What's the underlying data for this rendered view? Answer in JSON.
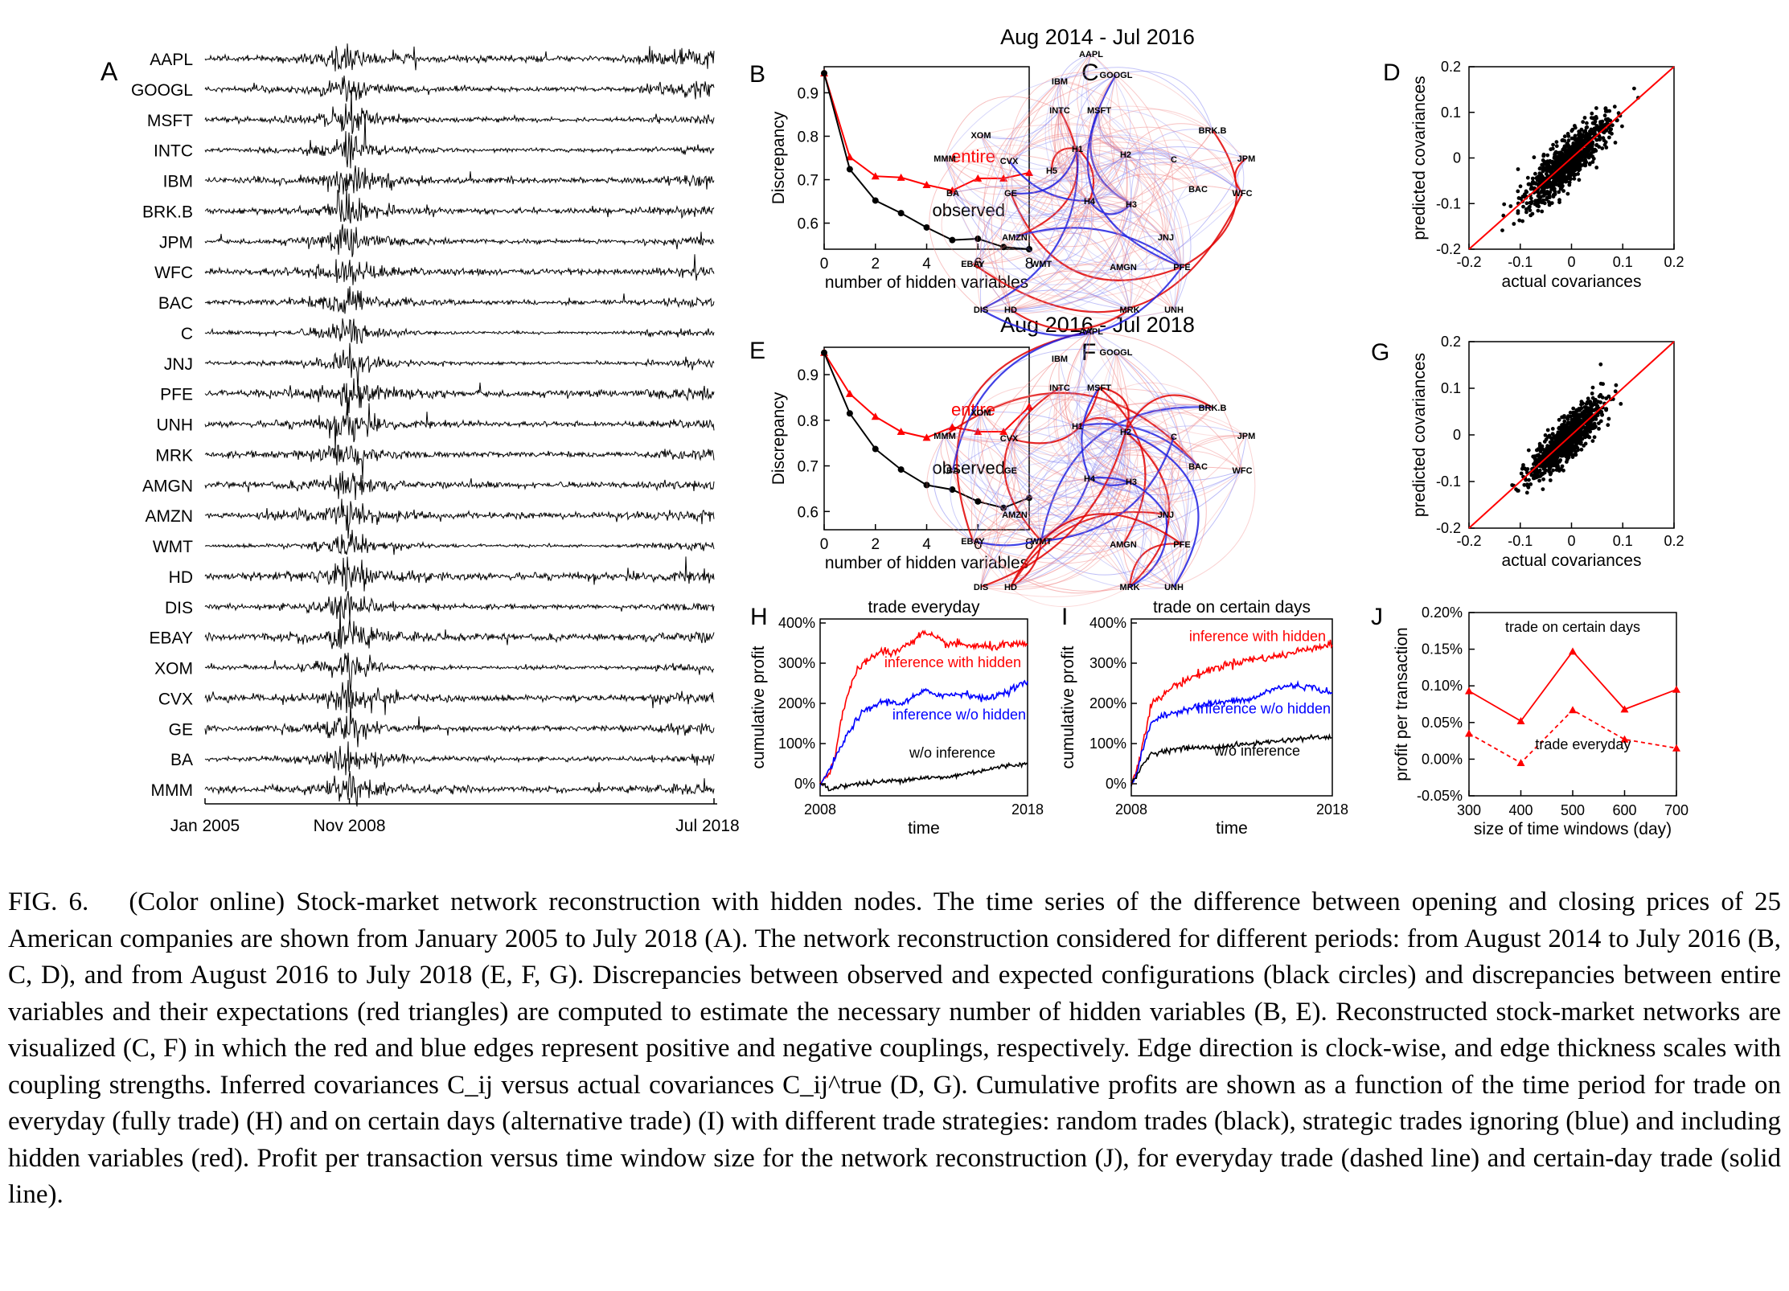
{
  "panelA": {
    "label": "A",
    "stocks": [
      "AAPL",
      "GOOGL",
      "MSFT",
      "INTC",
      "IBM",
      "BRK.B",
      "JPM",
      "WFC",
      "BAC",
      "C",
      "JNJ",
      "PFE",
      "UNH",
      "MRK",
      "AMGN",
      "AMZN",
      "WMT",
      "HD",
      "DIS",
      "EBAY",
      "XOM",
      "CVX",
      "GE",
      "BA",
      "MMM"
    ],
    "xticks": [
      "Jan 2005",
      "Nov 2008",
      "Jul 2018"
    ]
  },
  "period1": "Aug 2014 - Jul 2016",
  "period2": "Aug 2016 - Jul 2018",
  "discrepancy_panels": [
    {
      "label": "B",
      "ylabel": "Discrepancy",
      "xlabel": "number of hidden variables",
      "entire_label": "entire",
      "observed_label": "observed",
      "yticks": [
        "0.6",
        "0.7",
        "0.8",
        "0.9"
      ],
      "xticks": [
        "0",
        "2",
        "4",
        "6",
        "8"
      ],
      "chart_data": {
        "type": "line",
        "xlim": [
          0,
          8
        ],
        "ylim": [
          0.54,
          0.96
        ],
        "series": [
          {
            "name": "entire",
            "color": "#ff0000",
            "x": [
              0,
              1,
              2,
              3,
              4,
              5,
              6,
              7,
              8
            ],
            "y": [
              0.945,
              0.752,
              0.708,
              0.705,
              0.688,
              0.675,
              0.703,
              0.703,
              0.716
            ]
          },
          {
            "name": "observed",
            "color": "#000000",
            "x": [
              0,
              1,
              2,
              3,
              4,
              5,
              6,
              7,
              8
            ],
            "y": [
              0.945,
              0.724,
              0.652,
              0.623,
              0.59,
              0.561,
              0.564,
              0.545,
              0.54
            ]
          }
        ]
      }
    },
    {
      "label": "E",
      "ylabel": "Discrepancy",
      "xlabel": "number of hidden variables",
      "entire_label": "entire",
      "observed_label": "observed",
      "yticks": [
        "0.6",
        "0.7",
        "0.8",
        "0.9"
      ],
      "xticks": [
        "0",
        "2",
        "4",
        "6",
        "8"
      ],
      "chart_data": {
        "type": "line",
        "xlim": [
          0,
          8
        ],
        "ylim": [
          0.56,
          0.96
        ],
        "series": [
          {
            "name": "entire",
            "color": "#ff0000",
            "x": [
              0,
              1,
              2,
              3,
              4,
              5,
              6,
              7,
              8
            ],
            "y": [
              0.948,
              0.858,
              0.808,
              0.775,
              0.762,
              0.785,
              0.775,
              0.775,
              0.83
            ]
          },
          {
            "name": "observed",
            "color": "#000000",
            "x": [
              0,
              1,
              2,
              3,
              4,
              5,
              6,
              7,
              8
            ],
            "y": [
              0.948,
              0.815,
              0.737,
              0.692,
              0.658,
              0.648,
              0.622,
              0.608,
              0.63
            ]
          }
        ]
      }
    }
  ],
  "network_panels": [
    {
      "label": "C",
      "nodes": [
        "AAPL",
        "GOOGL",
        "IBM",
        "INTC",
        "MSFT",
        "XOM",
        "MMM",
        "CVX",
        "BA",
        "GE",
        "H1",
        "H2",
        "H3",
        "H4",
        "H5",
        "BRK.B",
        "C",
        "JPM",
        "BAC",
        "WFC",
        "AMZN",
        "EBAY",
        "WMT",
        "DIS",
        "HD",
        "AMGN",
        "JNJ",
        "PFE",
        "MRK",
        "UNH"
      ]
    },
    {
      "label": "F",
      "nodes": [
        "AAPL",
        "GOOGL",
        "IBM",
        "INTC",
        "MSFT",
        "XOM",
        "MMM",
        "CVX",
        "BA",
        "GE",
        "H1",
        "H2",
        "H3",
        "H4",
        "BRK.B",
        "C",
        "JPM",
        "BAC",
        "WFC",
        "AMZN",
        "EBAY",
        "WMT",
        "DIS",
        "HD",
        "AMGN",
        "JNJ",
        "PFE",
        "MRK",
        "UNH"
      ]
    }
  ],
  "scatter_panels": [
    {
      "label": "D",
      "ylabel": "predicted covariances",
      "xlabel": "actual covariances",
      "xticks": [
        "-0.2",
        "-0.1",
        "0",
        "0.1",
        "0.2"
      ],
      "yticks": [
        "0.2",
        "0.1",
        "0",
        "-0.1",
        "-0.2"
      ],
      "chart_data": {
        "type": "scatter",
        "xlim": [
          -0.2,
          0.2
        ],
        "ylim": [
          -0.2,
          0.2
        ],
        "diagonal_color": "#ff0000",
        "cloud_sd_x": 0.04,
        "cloud_noise": 0.025
      }
    },
    {
      "label": "G",
      "ylabel": "predicted covariances",
      "xlabel": "actual covariances",
      "xticks": [
        "-0.2",
        "-0.1",
        "0",
        "0.1",
        "0.2"
      ],
      "yticks": [
        "0.2",
        "0.1",
        "0",
        "-0.1",
        "-0.2"
      ],
      "chart_data": {
        "type": "scatter",
        "xlim": [
          -0.2,
          0.2
        ],
        "ylim": [
          -0.2,
          0.2
        ],
        "diagonal_color": "#ff0000",
        "cloud_sd_x": 0.035,
        "cloud_noise": 0.022
      }
    }
  ],
  "profit_panels": [
    {
      "label": "H",
      "title": "trade everyday",
      "ylabel": "cumulative profit",
      "xlabel": "time",
      "xticks": [
        "2008",
        "2018"
      ],
      "yticks": [
        "0%",
        "100%",
        "200%",
        "300%",
        "400%"
      ],
      "series_labels": [
        "inference with hidden",
        "inference w/o hidden",
        "w/o inference"
      ],
      "chart_data": {
        "type": "line",
        "xlim": [
          2008,
          2018
        ],
        "ylim": [
          -30,
          410
        ],
        "series": [
          {
            "name": "inference with hidden",
            "color": "#ff0000",
            "x": [
              2008,
              2008.3,
              2008.7,
              2009,
              2009.4,
              2009.8,
              2010.3,
              2011,
              2011.5,
              2012,
              2013,
              2014,
              2015,
              2016,
              2017,
              2018
            ],
            "y": [
              0,
              15,
              60,
              160,
              235,
              280,
              310,
              330,
              325,
              340,
              375,
              350,
              345,
              340,
              345,
              345
            ]
          },
          {
            "name": "inference w/o hidden",
            "color": "#0000ff",
            "x": [
              2008,
              2008.3,
              2008.7,
              2009,
              2009.5,
              2010,
              2011,
              2012,
              2013,
              2014,
              2015,
              2016,
              2017,
              2018
            ],
            "y": [
              0,
              20,
              60,
              90,
              140,
              175,
              205,
              200,
              230,
              220,
              225,
              210,
              230,
              255
            ]
          },
          {
            "name": "w/o inference",
            "color": "#000000",
            "x": [
              2008,
              2008.5,
              2009,
              2010,
              2011,
              2012,
              2013,
              2014,
              2015,
              2016,
              2017,
              2018
            ],
            "y": [
              0,
              -15,
              -5,
              0,
              5,
              10,
              15,
              15,
              25,
              35,
              45,
              50
            ]
          }
        ]
      }
    },
    {
      "label": "I",
      "title": "trade on certain days",
      "ylabel": "cumulative profit",
      "xlabel": "time",
      "xticks": [
        "2008",
        "2018"
      ],
      "yticks": [
        "0%",
        "100%",
        "200%",
        "300%",
        "400%"
      ],
      "series_labels": [
        "inference with hidden",
        "inference w/o hidden",
        "w/o inference"
      ],
      "chart_data": {
        "type": "line",
        "xlim": [
          2008,
          2018
        ],
        "ylim": [
          -30,
          410
        ],
        "series": [
          {
            "name": "inference with hidden",
            "color": "#ff0000",
            "x": [
              2008,
              2008.3,
              2008.6,
              2009,
              2009.5,
              2010,
              2011,
              2012,
              2013,
              2014,
              2015,
              2016,
              2017,
              2018
            ],
            "y": [
              0,
              40,
              110,
              200,
              215,
              240,
              265,
              285,
              300,
              310,
              315,
              325,
              340,
              345
            ]
          },
          {
            "name": "inference w/o hidden",
            "color": "#0000ff",
            "x": [
              2008,
              2008.3,
              2008.6,
              2009,
              2009.5,
              2010,
              2011,
              2012,
              2013,
              2014,
              2015,
              2016,
              2017,
              2018
            ],
            "y": [
              0,
              30,
              90,
              155,
              165,
              175,
              190,
              200,
              205,
              210,
              235,
              245,
              240,
              225
            ]
          },
          {
            "name": "w/o inference",
            "color": "#000000",
            "x": [
              2008,
              2008.3,
              2008.6,
              2009,
              2010,
              2011,
              2012,
              2013,
              2014,
              2015,
              2016,
              2017,
              2018
            ],
            "y": [
              0,
              20,
              50,
              75,
              85,
              90,
              90,
              95,
              100,
              105,
              110,
              115,
              115
            ]
          }
        ]
      }
    }
  ],
  "panelJ": {
    "label": "J",
    "ylabel": "profit per transaction",
    "xlabel": "size of time windows (day)",
    "xticks": [
      "300",
      "400",
      "500",
      "600",
      "700"
    ],
    "yticks": [
      "0.20%",
      "0.15%",
      "0.10%",
      "0.05%",
      "0.00%",
      "-0.05%"
    ],
    "solid_label": "trade on certain days",
    "dashed_label": "trade everyday",
    "chart_data": {
      "type": "line",
      "xlim": [
        300,
        700
      ],
      "ylim": [
        -0.05,
        0.2
      ],
      "series": [
        {
          "name": "trade on certain days",
          "color": "#ff0000",
          "style": "solid",
          "x": [
            300,
            400,
            500,
            600,
            700
          ],
          "y": [
            0.093,
            0.052,
            0.147,
            0.068,
            0.095
          ]
        },
        {
          "name": "trade everyday",
          "color": "#ff0000",
          "style": "dashed",
          "x": [
            300,
            400,
            500,
            600,
            700
          ],
          "y": [
            0.035,
            -0.005,
            0.067,
            0.027,
            0.015
          ]
        }
      ]
    }
  },
  "caption": {
    "label": "FIG. 6.",
    "text": "(Color online) Stock-market network reconstruction with hidden nodes. The time series of the difference between opening and closing prices of 25 American companies are shown from January 2005 to July 2018 (A). The network reconstruction considered for different periods: from August 2014 to July 2016 (B, C, D), and from August 2016 to July 2018 (E, F, G). Discrepancies between observed and expected configurations (black circles) and discrepancies between entire variables and their expectations (red triangles) are computed to estimate the necessary number of hidden variables (B, E). Reconstructed stock-market networks are visualized (C, F) in which the red and blue edges represent positive and negative couplings, respectively. Edge direction is clock-wise, and edge thickness scales with coupling strengths. Inferred covariances C_ij versus actual covariances C_ij^true (D, G). Cumulative profits are shown as a function of the time period for trade on everyday (fully trade) (H) and on certain days (alternative trade) (I) with different trade strategies: random trades (black), strategic trades ignoring (blue) and including hidden variables (red). Profit per transaction versus time window size for the network reconstruction (J), for everyday trade (dashed line) and certain-day trade (solid line)."
  }
}
